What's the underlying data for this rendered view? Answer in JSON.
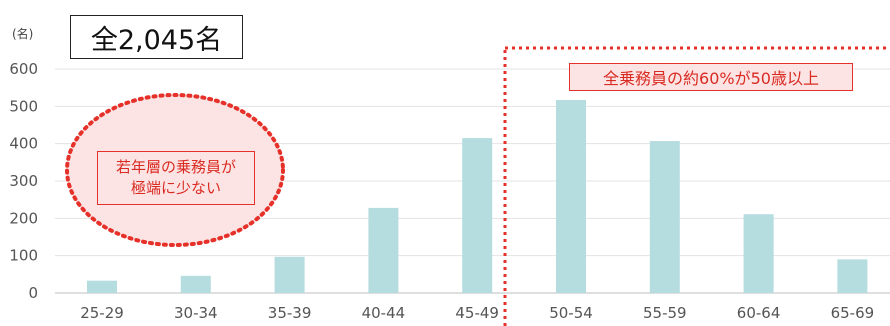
{
  "chart_data": {
    "type": "bar",
    "unit_label": "(名)",
    "total_label": "全2,045名",
    "categories": [
      "25-29",
      "30-34",
      "35-39",
      "40-44",
      "45-49",
      "50-54",
      "55-59",
      "60-64",
      "65-69"
    ],
    "values": [
      33,
      46,
      97,
      228,
      415,
      517,
      407,
      211,
      90
    ],
    "ylim": [
      0,
      600
    ],
    "yticks": [
      0,
      100,
      200,
      300,
      400,
      500,
      600
    ],
    "grid": true,
    "bar_color": "#b5dde0",
    "annotations": {
      "older": "全乗務員の約60%が50歳以上",
      "younger_line1": "若年層の乗務員が",
      "younger_line2": "極端に少ない"
    },
    "accent_color": "#e5312a"
  }
}
